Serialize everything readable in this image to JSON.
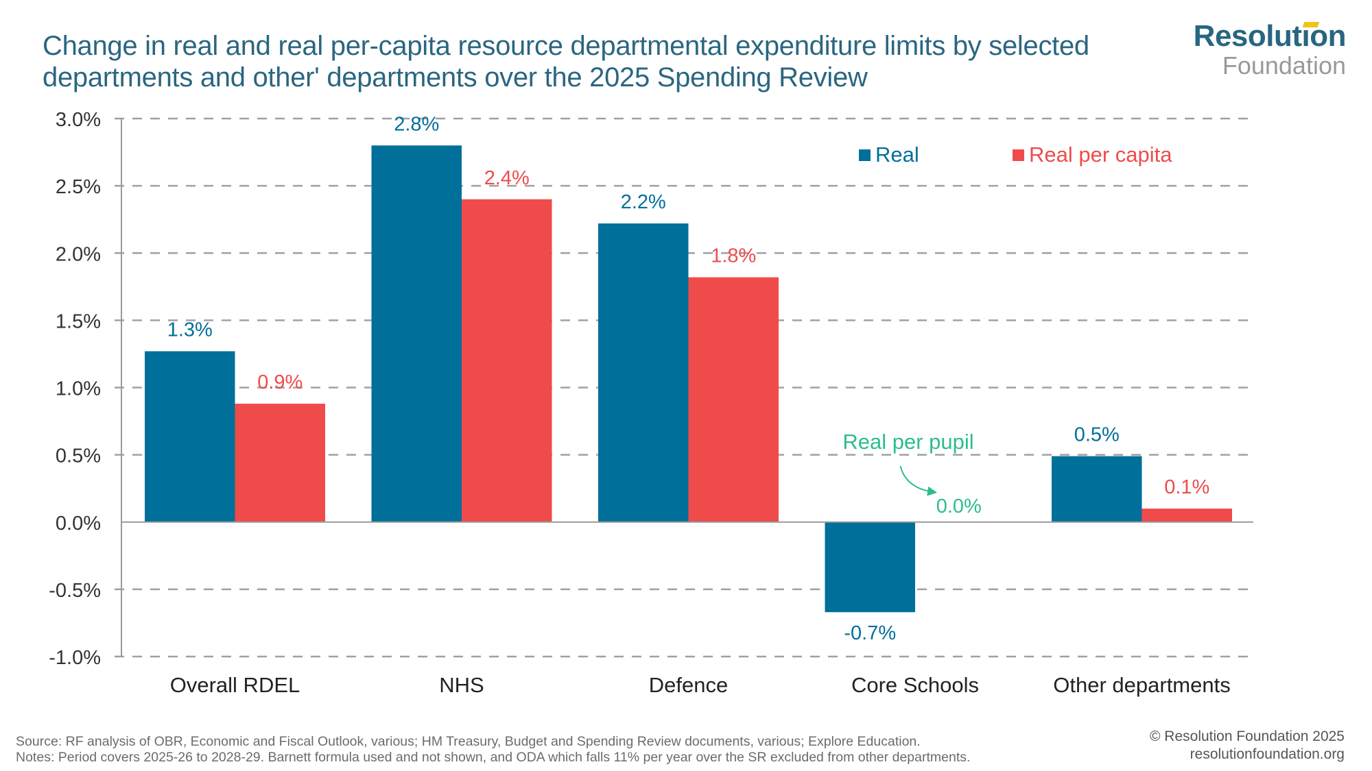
{
  "header": {
    "title_line1": "Change in real and real per-capita resource departmental expenditure limits by selected",
    "title_line2": "departments and other' departments over the 2025 Spending Review"
  },
  "logo": {
    "line1": "Resolution",
    "line2": "Foundation",
    "accent_color": "#f2c318"
  },
  "footer": {
    "source": "Source: RF analysis of OBR, Economic and Fiscal Outlook, various; HM Treasury, Budget and Spending Review documents, various; Explore Education.",
    "notes": "Notes: Period covers 2025-26 to 2028-29. Barnett formula used and not shown, and ODA which falls 11% per year over the SR excluded from other departments.",
    "copyright": "© Resolution Foundation 2025",
    "website": "resolutionfoundation.org"
  },
  "chart_data": {
    "type": "bar",
    "title": "Change in real and real per-capita resource departmental expenditure limits by selected departments and other' departments over the 2025 Spending Review",
    "xlabel": "",
    "ylabel": "",
    "categories": [
      "Overall RDEL",
      "NHS",
      "Defence",
      "Core Schools",
      "Other departments"
    ],
    "series": [
      {
        "name": "Real",
        "color": "#006f9a",
        "values": [
          1.27,
          2.8,
          2.22,
          -0.67,
          0.49
        ],
        "labels": [
          "1.3%",
          "2.8%",
          "2.2%",
          "-0.7%",
          "0.5%"
        ]
      },
      {
        "name": "Real per capita",
        "color": "#ef4b4b",
        "values": [
          0.88,
          2.4,
          1.82,
          0.0,
          0.1
        ],
        "labels": [
          "0.9%",
          "2.4%",
          "1.8%",
          "0.0%",
          "0.1%"
        ]
      }
    ],
    "annotation": {
      "text": "Real per pupil",
      "applies_to": "Core Schools",
      "value_label": "0.0%",
      "color": "#2dbd8a"
    },
    "ylim": [
      -1.0,
      3.0
    ],
    "yticks": [
      -1.0,
      -0.5,
      0.0,
      0.5,
      1.0,
      1.5,
      2.0,
      2.5,
      3.0
    ],
    "ytick_labels": [
      "-1.0%",
      "-0.5%",
      "0.0%",
      "0.5%",
      "1.0%",
      "1.5%",
      "2.0%",
      "2.5%",
      "3.0%"
    ],
    "grid": true,
    "grid_style": "dashed",
    "legend_position": "top-right",
    "label_color": "#222222",
    "grid_color": "#a0a0a0"
  }
}
